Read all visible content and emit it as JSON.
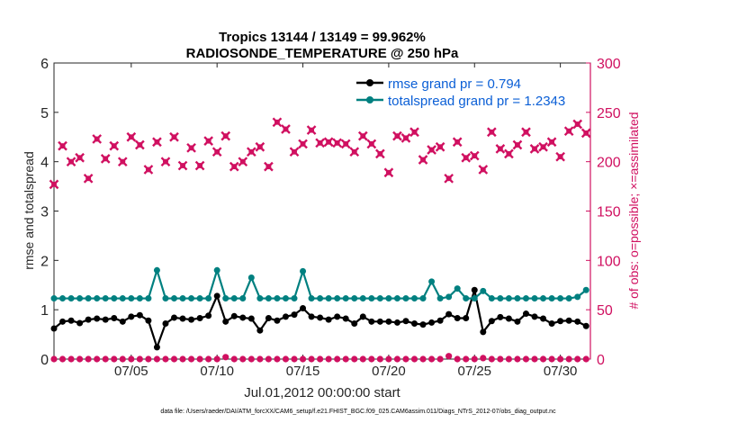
{
  "chart_data": {
    "type": "line",
    "title": "Tropics 13144 / 13149 = 99.962%",
    "subtitle": "RADIOSONDE_TEMPERATURE @ 250 hPa",
    "xlabel": "Jul.01,2012 00:00:00 start",
    "ylabel": "rmse and totalspread",
    "y2label": "# of obs: o=possible; ×=assimilated",
    "footnote": "data file: /Users/raeder/DAI/ATM_forcXX/CAM6_setup/f.e21.FHIST_BGC.f09_025.CAM6assim.011/Diags_NTrS_2012-07/obs_diag_output.nc",
    "xlim": [
      0.5,
      31.75
    ],
    "ylim": [
      0,
      6
    ],
    "y2lim": [
      0,
      300
    ],
    "grid": false,
    "legend_position": "top-right",
    "xticks": [
      {
        "value": 5,
        "label": "07/05"
      },
      {
        "value": 10,
        "label": "07/10"
      },
      {
        "value": 15,
        "label": "07/15"
      },
      {
        "value": 20,
        "label": "07/20"
      },
      {
        "value": 25,
        "label": "07/25"
      },
      {
        "value": 30,
        "label": "07/30"
      }
    ],
    "yticks": [
      0,
      1,
      2,
      3,
      4,
      5,
      6
    ],
    "y2ticks": [
      0,
      50,
      100,
      150,
      200,
      250,
      300
    ],
    "x": [
      0.5,
      1,
      1.5,
      2,
      2.5,
      3,
      3.5,
      4,
      4.5,
      5,
      5.5,
      6,
      6.5,
      7,
      7.5,
      8,
      8.5,
      9,
      9.5,
      10,
      10.5,
      11,
      11.5,
      12,
      12.5,
      13,
      13.5,
      14,
      14.5,
      15,
      15.5,
      16,
      16.5,
      17,
      17.5,
      18,
      18.5,
      19,
      19.5,
      20,
      20.5,
      21,
      21.5,
      22,
      22.5,
      23,
      23.5,
      24,
      24.5,
      25,
      25.5,
      26,
      26.5,
      27,
      27.5,
      28,
      28.5,
      29,
      29.5,
      30,
      30.5,
      31,
      31.5
    ],
    "series": [
      {
        "name": "rmse grand pr = 0.794",
        "color": "#000000",
        "axis": "left",
        "marker": "circle",
        "values": [
          0.62,
          0.76,
          0.78,
          0.73,
          0.8,
          0.82,
          0.8,
          0.83,
          0.76,
          0.86,
          0.89,
          0.78,
          0.24,
          0.72,
          0.84,
          0.82,
          0.8,
          0.83,
          0.88,
          1.28,
          0.76,
          0.87,
          0.84,
          0.82,
          0.58,
          0.83,
          0.78,
          0.86,
          0.9,
          1.03,
          0.86,
          0.84,
          0.8,
          0.86,
          0.82,
          0.72,
          0.86,
          0.76,
          0.76,
          0.76,
          0.74,
          0.77,
          0.72,
          0.7,
          0.74,
          0.78,
          0.91,
          0.83,
          0.83,
          1.4,
          0.55,
          0.77,
          0.85,
          0.82,
          0.76,
          0.92,
          0.86,
          0.82,
          0.72,
          0.77,
          0.78,
          0.76,
          0.67
        ]
      },
      {
        "name": "totalspread grand pr = 1.2343",
        "color": "#008080",
        "axis": "left",
        "marker": "circle",
        "values": [
          1.23,
          1.23,
          1.23,
          1.23,
          1.23,
          1.23,
          1.23,
          1.23,
          1.23,
          1.23,
          1.23,
          1.23,
          1.8,
          1.23,
          1.23,
          1.23,
          1.23,
          1.23,
          1.23,
          1.8,
          1.23,
          1.23,
          1.23,
          1.65,
          1.23,
          1.23,
          1.23,
          1.23,
          1.23,
          1.78,
          1.23,
          1.23,
          1.23,
          1.23,
          1.23,
          1.23,
          1.23,
          1.23,
          1.23,
          1.23,
          1.23,
          1.23,
          1.23,
          1.23,
          1.57,
          1.23,
          1.26,
          1.43,
          1.23,
          1.23,
          1.38,
          1.23,
          1.23,
          1.23,
          1.23,
          1.23,
          1.23,
          1.23,
          1.23,
          1.23,
          1.23,
          1.26,
          1.4
        ]
      },
      {
        "name": "possible",
        "color": "#d01060",
        "axis": "right",
        "marker": "circle",
        "values": [
          0,
          0,
          0,
          0,
          0,
          0,
          0,
          0,
          0,
          0,
          0,
          0,
          0,
          0,
          0,
          0,
          0,
          0,
          0,
          0,
          2,
          0,
          0,
          0,
          0,
          0,
          0,
          0,
          0,
          0,
          0,
          0,
          0,
          0,
          0,
          0,
          0,
          0,
          0,
          0,
          0,
          0,
          0,
          0,
          0,
          0,
          3,
          0,
          0,
          0,
          1,
          0,
          0,
          0,
          0,
          0,
          0,
          0,
          0,
          0,
          0,
          0,
          0
        ]
      },
      {
        "name": "assimilated",
        "color": "#d01060",
        "axis": "right",
        "marker": "x",
        "values": [
          177,
          216,
          200,
          204,
          183,
          223,
          203,
          216,
          200,
          225,
          217,
          192,
          220,
          200,
          225,
          196,
          214,
          196,
          221,
          210,
          226,
          195,
          200,
          210,
          215,
          195,
          240,
          233,
          210,
          218,
          232,
          219,
          220,
          219,
          218,
          210,
          226,
          218,
          208,
          189,
          226,
          224,
          230,
          202,
          212,
          215,
          183,
          220,
          204,
          206,
          192,
          230,
          213,
          208,
          217,
          230,
          213,
          215,
          220,
          205,
          231,
          238,
          229
        ]
      }
    ]
  }
}
